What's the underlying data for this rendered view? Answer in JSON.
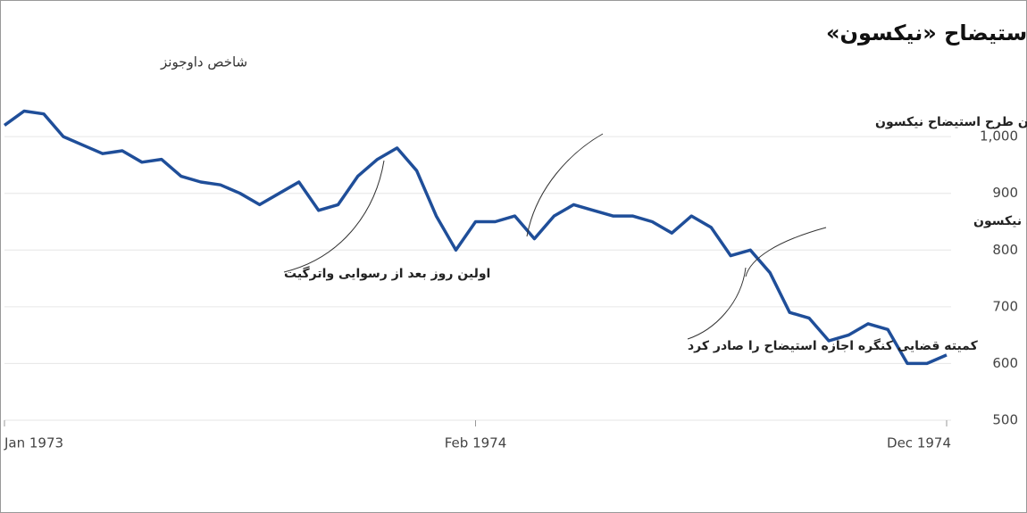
{
  "chart_data": {
    "type": "line",
    "title": "سقوط بازار سهام هنگام طرح استیضاح «نیکسون»",
    "subtitle": "شاخص داوجونز",
    "categories": [
      "Jan 1973",
      null,
      null,
      null,
      null,
      null,
      null,
      null,
      null,
      null,
      null,
      null,
      null,
      null,
      null,
      null,
      null,
      null,
      null,
      null,
      null,
      null,
      null,
      null,
      "Feb 1974",
      null,
      null,
      null,
      null,
      null,
      null,
      null,
      null,
      null,
      null,
      null,
      null,
      null,
      null,
      null,
      null,
      null,
      null,
      null,
      null,
      null,
      null,
      null,
      "Dec 1974"
    ],
    "series": [
      {
        "name": "شاخص داوجونز",
        "color": "#1f4e99",
        "values": [
          1020,
          1045,
          1040,
          1000,
          985,
          970,
          975,
          955,
          960,
          930,
          920,
          915,
          900,
          880,
          900,
          920,
          870,
          880,
          930,
          960,
          980,
          940,
          860,
          800,
          850,
          850,
          860,
          820,
          860,
          880,
          870,
          860,
          860,
          850,
          830,
          860,
          840,
          790,
          800,
          760,
          690,
          680,
          640,
          650,
          670,
          660,
          600,
          600,
          615
        ]
      }
    ],
    "ylim": [
      500,
      1060
    ],
    "yticks": [
      500,
      600,
      700,
      800,
      900,
      {
        "value": 1000,
        "label": "1,000"
      }
    ],
    "annotations": [
      "قطعی شدن طرح استیضاح نیکسون",
      "استعفای نیکسون",
      "اولین روز بعد از رسوایی واترگیت",
      "کمیته قضایی کنگره اجازه استیضاح را صادر کرد"
    ]
  }
}
